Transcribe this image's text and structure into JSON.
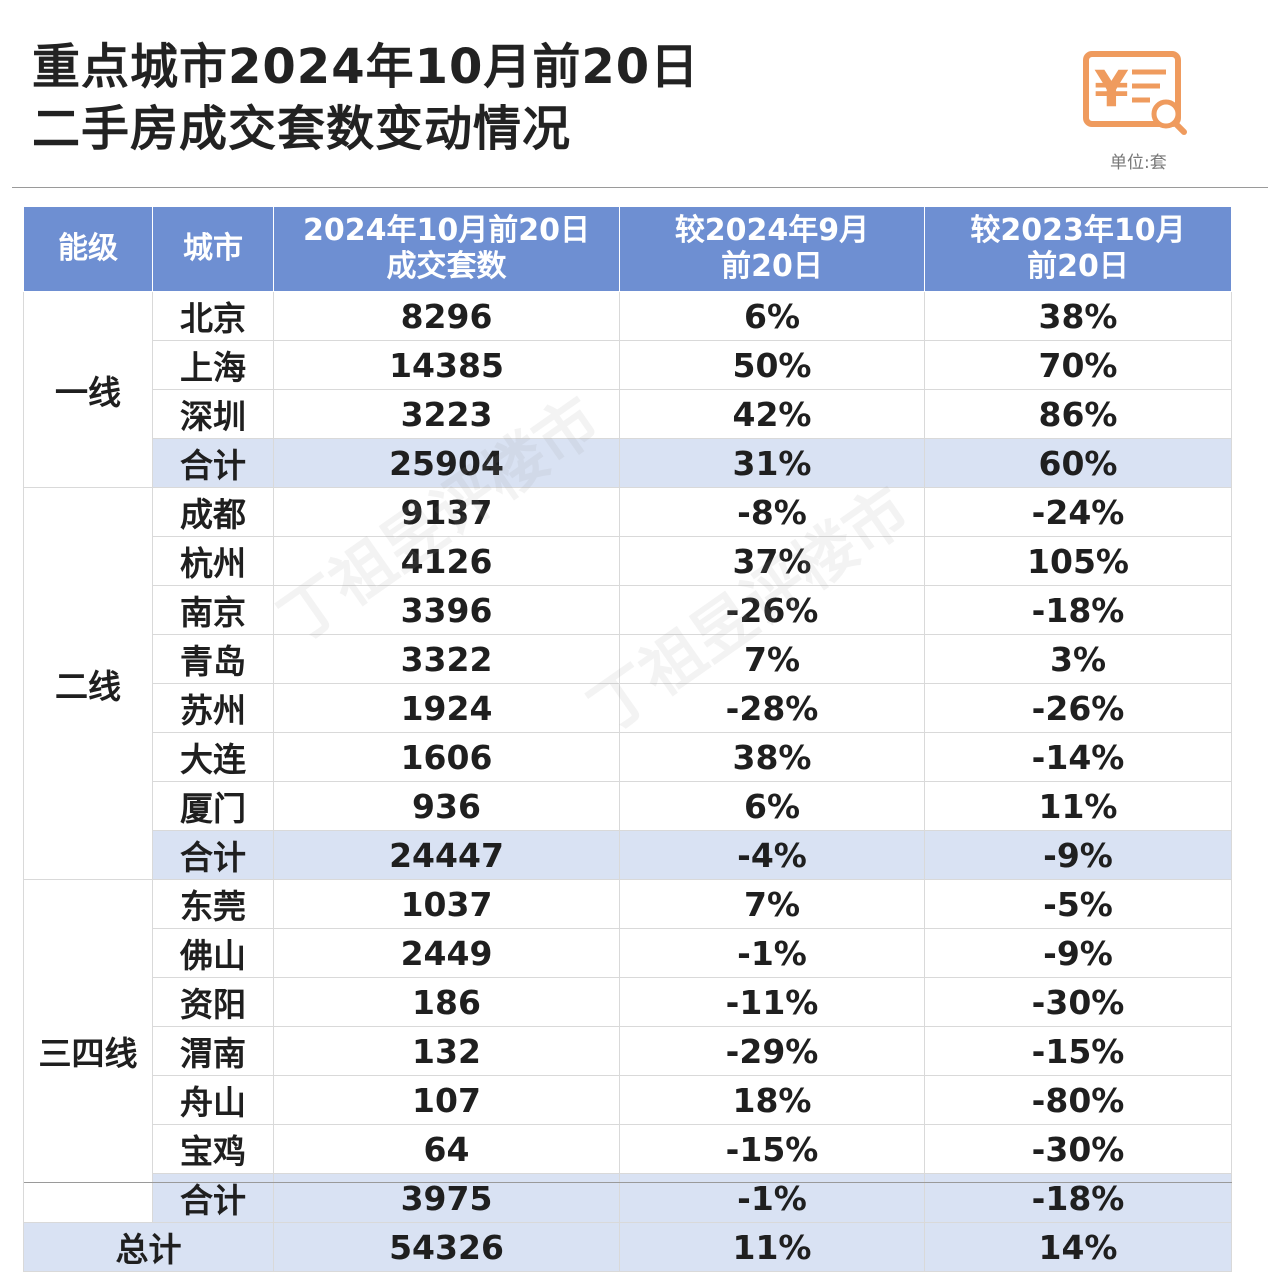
{
  "title": {
    "line1": "重点城市2024年10月前20日",
    "line2": "二手房成交套数变动情况"
  },
  "logo_icon": "yuan-receipt-search-icon",
  "logo_color": "#ef9b5e",
  "unit_label": "单位:套",
  "table": {
    "header_bg": "#6e8fd2",
    "subtotal_bg": "#d9e2f3",
    "headers": {
      "tier": "能级",
      "city": "城市",
      "volume_line1": "2024年10月前20日",
      "volume_line2": "成交套数",
      "mom_line1": "较2024年9月",
      "mom_line2": "前20日",
      "yoy_line1": "较2023年10月",
      "yoy_line2": "前20日"
    },
    "groups": [
      {
        "tier": "一线",
        "rows": [
          {
            "city": "北京",
            "volume": "8296",
            "mom": "6%",
            "yoy": "38%"
          },
          {
            "city": "上海",
            "volume": "14385",
            "mom": "50%",
            "yoy": "70%"
          },
          {
            "city": "深圳",
            "volume": "3223",
            "mom": "42%",
            "yoy": "86%"
          }
        ],
        "subtotal": {
          "label": "合计",
          "volume": "25904",
          "mom": "31%",
          "yoy": "60%"
        }
      },
      {
        "tier": "二线",
        "rows": [
          {
            "city": "成都",
            "volume": "9137",
            "mom": "-8%",
            "yoy": "-24%"
          },
          {
            "city": "杭州",
            "volume": "4126",
            "mom": "37%",
            "yoy": "105%"
          },
          {
            "city": "南京",
            "volume": "3396",
            "mom": "-26%",
            "yoy": "-18%"
          },
          {
            "city": "青岛",
            "volume": "3322",
            "mom": "7%",
            "yoy": "3%"
          },
          {
            "city": "苏州",
            "volume": "1924",
            "mom": "-28%",
            "yoy": "-26%"
          },
          {
            "city": "大连",
            "volume": "1606",
            "mom": "38%",
            "yoy": "-14%"
          },
          {
            "city": "厦门",
            "volume": "936",
            "mom": "6%",
            "yoy": "11%"
          }
        ],
        "subtotal": {
          "label": "合计",
          "volume": "24447",
          "mom": "-4%",
          "yoy": "-9%"
        }
      },
      {
        "tier": "三四线",
        "rows": [
          {
            "city": "东莞",
            "volume": "1037",
            "mom": "7%",
            "yoy": "-5%"
          },
          {
            "city": "佛山",
            "volume": "2449",
            "mom": "-1%",
            "yoy": "-9%"
          },
          {
            "city": "资阳",
            "volume": "186",
            "mom": "-11%",
            "yoy": "-30%"
          },
          {
            "city": "渭南",
            "volume": "132",
            "mom": "-29%",
            "yoy": "-15%"
          },
          {
            "city": "舟山",
            "volume": "107",
            "mom": "18%",
            "yoy": "-80%"
          },
          {
            "city": "宝鸡",
            "volume": "64",
            "mom": "-15%",
            "yoy": "-30%"
          }
        ],
        "subtotal": {
          "label": "合计",
          "volume": "3975",
          "mom": "-1%",
          "yoy": "-18%"
        }
      }
    ],
    "total": {
      "label": "总计",
      "volume": "54326",
      "mom": "11%",
      "yoy": "14%"
    }
  },
  "watermark": {
    "chars": [
      "丁",
      "祖",
      "昱",
      "评",
      "楼",
      "市"
    ]
  }
}
